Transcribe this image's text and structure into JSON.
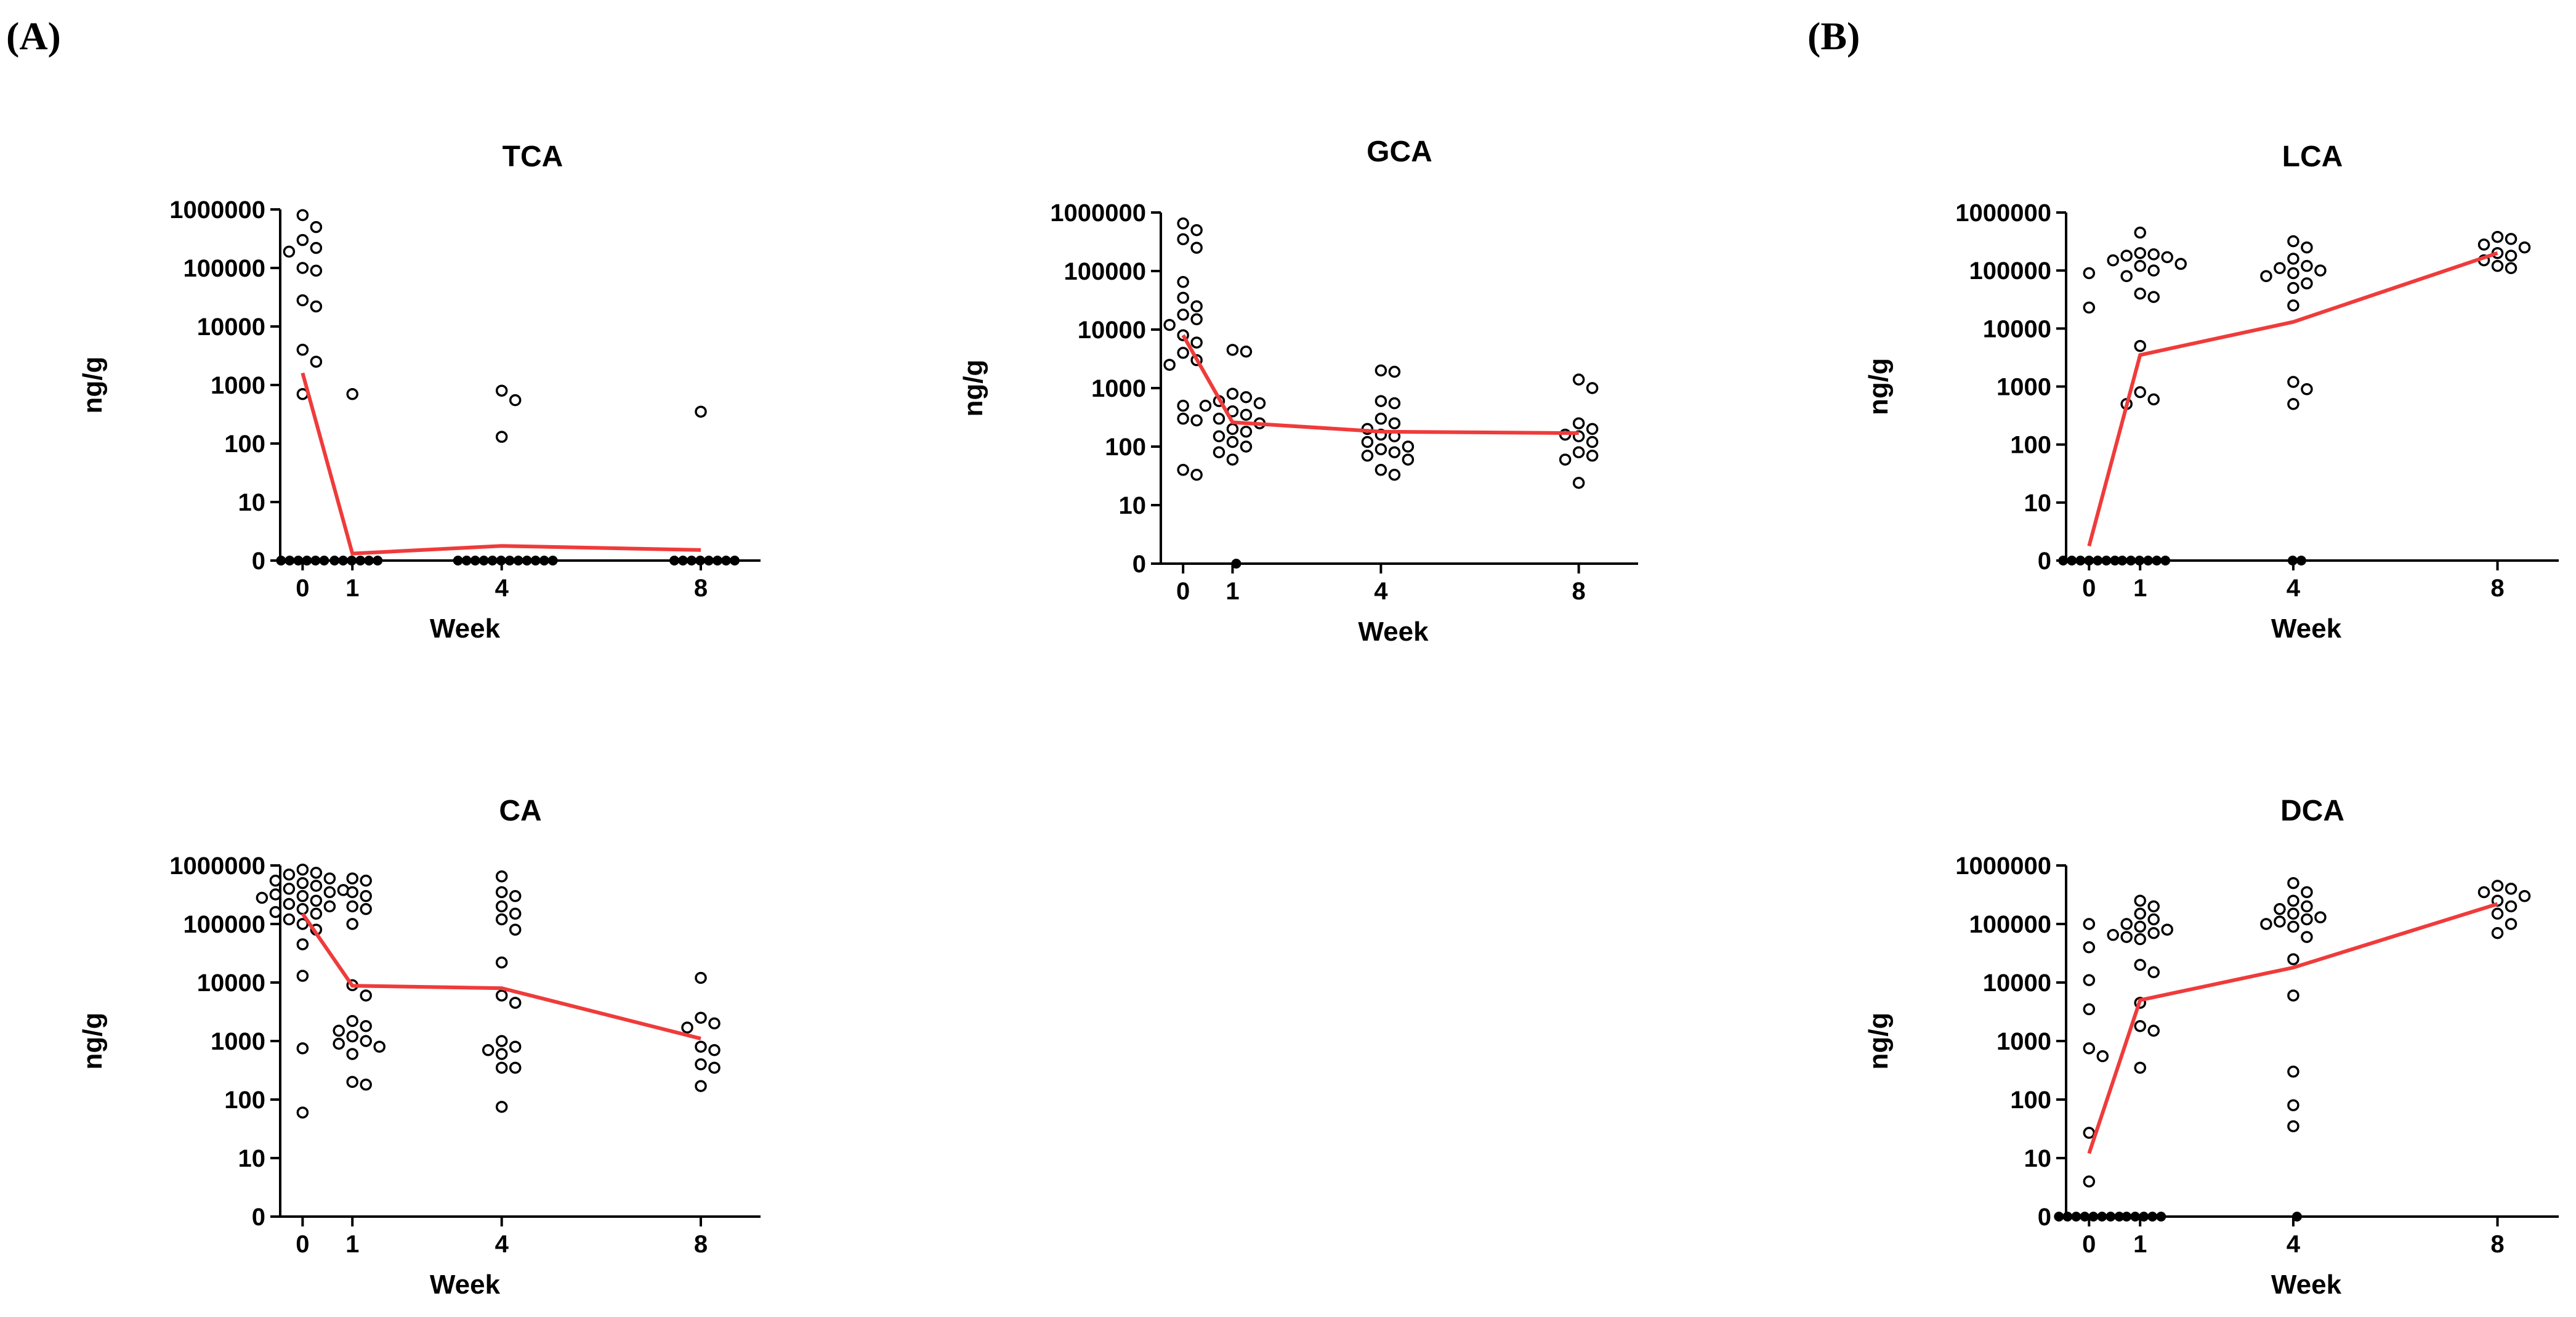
{
  "panel_labels": {
    "A": "(A)",
    "B": "(B)"
  },
  "chart_data": [
    {
      "id": "tca",
      "type": "scatter",
      "title": "TCA",
      "xlabel": "Week",
      "ylabel": "ng/g",
      "yscale": "log-with-zero",
      "yticks": [
        0,
        10,
        100,
        1000,
        10000,
        100000,
        1000000
      ],
      "ytick_labels": [
        "0",
        "10",
        "100",
        "1000",
        "10000",
        "100000",
        "1000000"
      ],
      "xticks": [
        0,
        1,
        4,
        8
      ],
      "xtick_labels": [
        "0",
        "1",
        "4",
        "8"
      ],
      "line_color": "#ef3b3b",
      "groups": [
        {
          "week": 0,
          "values": [
            800000,
            500000,
            300000,
            220000,
            190000,
            100000,
            90000,
            28000,
            22000,
            4000,
            2500,
            700,
            0,
            0,
            0,
            0,
            0,
            0
          ]
        },
        {
          "week": 1,
          "values": [
            700,
            0,
            0,
            0,
            0,
            0,
            0
          ]
        },
        {
          "week": 4,
          "values": [
            800,
            550,
            130,
            0,
            0,
            0,
            0,
            0,
            0,
            0,
            0,
            0,
            0,
            0,
            0
          ]
        },
        {
          "week": 8,
          "values": [
            350,
            0,
            0,
            0,
            0,
            0,
            0,
            0,
            0
          ]
        }
      ],
      "median_line": [
        {
          "week": 0,
          "value": 1600
        },
        {
          "week": 1,
          "value": 1.2
        },
        {
          "week": 4,
          "value": 2.5
        },
        {
          "week": 8,
          "value": 1.8
        }
      ]
    },
    {
      "id": "gca",
      "type": "scatter",
      "title": "GCA",
      "xlabel": "Week",
      "ylabel": "ng/g",
      "yscale": "log-with-zero",
      "yticks": [
        0,
        10,
        100,
        1000,
        10000,
        100000,
        1000000
      ],
      "ytick_labels": [
        "0",
        "10",
        "100",
        "1000",
        "10000",
        "100000",
        "1000000"
      ],
      "xticks": [
        0,
        1,
        4,
        8
      ],
      "xtick_labels": [
        "0",
        "1",
        "4",
        "8"
      ],
      "line_color": "#ef3b3b",
      "groups": [
        {
          "week": 0,
          "values": [
            650000,
            500000,
            350000,
            250000,
            65000,
            35000,
            25000,
            18000,
            15000,
            12000,
            8000,
            6000,
            4000,
            3000,
            2500,
            500,
            300,
            280,
            40,
            33
          ]
        },
        {
          "week": 1,
          "values": [
            4500,
            4200,
            800,
            700,
            600,
            550,
            500,
            400,
            350,
            300,
            250,
            200,
            180,
            150,
            120,
            100,
            80,
            60,
            0
          ]
        },
        {
          "week": 4,
          "values": [
            2000,
            1900,
            600,
            550,
            300,
            250,
            200,
            160,
            150,
            120,
            100,
            90,
            80,
            70,
            60,
            40,
            33
          ]
        },
        {
          "week": 8,
          "values": [
            1400,
            1000,
            250,
            200,
            160,
            150,
            120,
            80,
            70,
            60,
            24
          ]
        }
      ],
      "median_line": [
        {
          "week": 0,
          "value": 8000
        },
        {
          "week": 1,
          "value": 260
        },
        {
          "week": 4,
          "value": 180
        },
        {
          "week": 8,
          "value": 170
        }
      ]
    },
    {
      "id": "lca",
      "type": "scatter",
      "title": "LCA",
      "xlabel": "Week",
      "ylabel": "ng/g",
      "yscale": "log-with-zero",
      "yticks": [
        0,
        10,
        100,
        1000,
        10000,
        100000,
        1000000
      ],
      "ytick_labels": [
        "0",
        "10",
        "100",
        "1000",
        "10000",
        "100000",
        "1000000"
      ],
      "xticks": [
        0,
        1,
        4,
        8
      ],
      "xtick_labels": [
        "0",
        "1",
        "4",
        "8"
      ],
      "line_color": "#ef3b3b",
      "groups": [
        {
          "week": 0,
          "values": [
            90000,
            23000,
            0,
            0,
            0,
            0,
            0,
            0,
            0
          ]
        },
        {
          "week": 1,
          "values": [
            450000,
            200000,
            190000,
            180000,
            170000,
            150000,
            130000,
            120000,
            100000,
            80000,
            40000,
            35000,
            5000,
            800,
            600,
            500,
            0,
            0,
            0,
            0,
            0,
            0
          ]
        },
        {
          "week": 4,
          "values": [
            320000,
            250000,
            160000,
            120000,
            110000,
            100000,
            90000,
            80000,
            60000,
            50000,
            25000,
            1200,
            900,
            500,
            0,
            0
          ]
        },
        {
          "week": 8,
          "values": [
            380000,
            350000,
            280000,
            250000,
            200000,
            180000,
            150000,
            120000,
            110000
          ]
        }
      ],
      "median_line": [
        {
          "week": 0,
          "value": 2.5
        },
        {
          "week": 1,
          "value": 3500
        },
        {
          "week": 4,
          "value": 13000
        },
        {
          "week": 8,
          "value": 200000
        }
      ]
    },
    {
      "id": "ca",
      "type": "scatter",
      "title": "CA",
      "xlabel": "Week",
      "ylabel": "ng/g",
      "yscale": "log-with-zero",
      "yticks": [
        0,
        10,
        100,
        1000,
        10000,
        100000,
        1000000
      ],
      "ytick_labels": [
        "0",
        "10",
        "100",
        "1000",
        "10000",
        "100000",
        "1000000"
      ],
      "xticks": [
        0,
        1,
        4,
        8
      ],
      "xtick_labels": [
        "0",
        "1",
        "4",
        "8"
      ],
      "line_color": "#ef3b3b",
      "groups": [
        {
          "week": 0,
          "values": [
            850000,
            750000,
            700000,
            600000,
            550000,
            500000,
            450000,
            400000,
            380000,
            350000,
            320000,
            300000,
            280000,
            250000,
            220000,
            200000,
            180000,
            160000,
            150000,
            120000,
            100000,
            80000,
            45000,
            13000,
            750,
            60
          ]
        },
        {
          "week": 1,
          "values": [
            600000,
            550000,
            350000,
            300000,
            200000,
            180000,
            100000,
            9000,
            6000,
            2200,
            1800,
            1500,
            1200,
            1000,
            900,
            800,
            600,
            200,
            180
          ]
        },
        {
          "week": 4,
          "values": [
            650000,
            350000,
            300000,
            200000,
            150000,
            120000,
            80000,
            22000,
            6000,
            4500,
            1000,
            800,
            700,
            600,
            350,
            350,
            75
          ]
        },
        {
          "week": 8,
          "values": [
            12000,
            2500,
            2000,
            1700,
            800,
            700,
            400,
            350,
            170
          ]
        }
      ],
      "median_line": [
        {
          "week": 0,
          "value": 150000
        },
        {
          "week": 1,
          "value": 8800
        },
        {
          "week": 4,
          "value": 8000
        },
        {
          "week": 8,
          "value": 1100
        }
      ]
    },
    {
      "id": "dca",
      "type": "scatter",
      "title": "DCA",
      "xlabel": "Week",
      "ylabel": "ng/g",
      "yscale": "log-with-zero",
      "yticks": [
        0,
        10,
        100,
        1000,
        10000,
        100000,
        1000000
      ],
      "ytick_labels": [
        "0",
        "10",
        "100",
        "1000",
        "10000",
        "100000",
        "1000000"
      ],
      "xticks": [
        0,
        1,
        4,
        8
      ],
      "xtick_labels": [
        "0",
        "1",
        "4",
        "8"
      ],
      "line_color": "#ef3b3b",
      "groups": [
        {
          "week": 0,
          "values": [
            100000,
            40000,
            11000,
            3500,
            750,
            550,
            27,
            6,
            0,
            0,
            0,
            0,
            0,
            0,
            0,
            0
          ]
        },
        {
          "week": 1,
          "values": [
            250000,
            200000,
            150000,
            120000,
            100000,
            90000,
            80000,
            70000,
            65000,
            60000,
            55000,
            20000,
            15000,
            4500,
            1800,
            1500,
            350,
            0,
            0,
            0,
            0,
            0
          ]
        },
        {
          "week": 4,
          "values": [
            500000,
            350000,
            250000,
            200000,
            180000,
            150000,
            130000,
            120000,
            110000,
            100000,
            90000,
            60000,
            25000,
            6000,
            300,
            80,
            35,
            0
          ]
        },
        {
          "week": 8,
          "values": [
            450000,
            400000,
            350000,
            300000,
            250000,
            200000,
            150000,
            100000,
            70000
          ]
        }
      ],
      "median_line": [
        {
          "week": 0,
          "value": 12
        },
        {
          "week": 1,
          "value": 5000
        },
        {
          "week": 4,
          "value": 18000
        },
        {
          "week": 8,
          "value": 220000
        }
      ]
    }
  ]
}
